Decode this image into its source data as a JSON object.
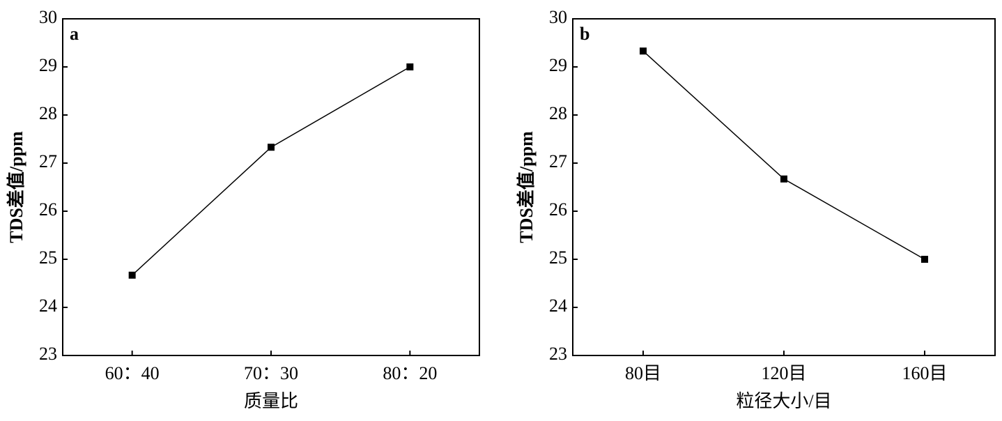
{
  "chart_data": [
    {
      "type": "line",
      "panel": "a",
      "xlabel": "质量比",
      "ylabel": "TDS差值/ppm",
      "categories": [
        "60：40",
        "70：30",
        "80：20"
      ],
      "series": [
        {
          "color": "#000000",
          "values": [
            24.67,
            27.33,
            29
          ]
        }
      ],
      "ylim": [
        23,
        30
      ],
      "yticks": [
        23,
        24,
        25,
        26,
        27,
        28,
        29,
        30
      ]
    },
    {
      "type": "line",
      "panel": "b",
      "xlabel": "粒径大小/目",
      "ylabel": "TDS差值/ppm",
      "categories": [
        "80目",
        "120目",
        "160目"
      ],
      "series": [
        {
          "color": "#000000",
          "values": [
            29.33,
            26.67,
            25
          ]
        }
      ],
      "ylim": [
        23,
        30
      ],
      "yticks": [
        23,
        24,
        25,
        26,
        27,
        28,
        29,
        30
      ]
    }
  ]
}
